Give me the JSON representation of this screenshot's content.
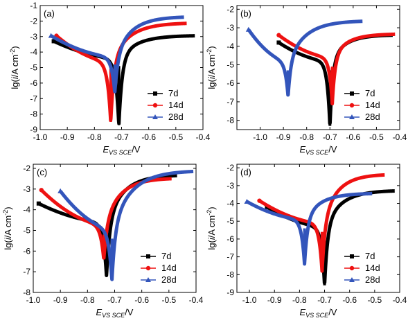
{
  "colors": {
    "7d": "#000000",
    "14d": "#ee1111",
    "28d": "#3355bb"
  },
  "chart_data": [
    {
      "panel": "(a)",
      "type": "line",
      "xlabel": "E_VS SCE/V",
      "ylabel": "lg(i/A cm^-2)",
      "xlim": [
        -1.0,
        -0.4
      ],
      "ylim": [
        -9,
        -1
      ],
      "xticks": [
        "-1.0",
        "-0.9",
        "-0.8",
        "-0.7",
        "-0.6",
        "-0.5",
        "-0.4"
      ],
      "yticks": [
        "-9",
        "-8",
        "-7",
        "-6",
        "-5",
        "-4",
        "-3",
        "-2",
        "-1"
      ],
      "legend": [
        "7d",
        "14d",
        "28d"
      ],
      "series": [
        {
          "name": "7d",
          "ecorr": -0.71,
          "icorr": -4.4,
          "start": [
            -0.95,
            -3.3
          ],
          "end": [
            -0.43,
            -2.95
          ],
          "dip": -8.7
        },
        {
          "name": "14d",
          "ecorr": -0.74,
          "icorr": -4.6,
          "start": [
            -0.94,
            -2.95
          ],
          "end": [
            -0.46,
            -2.15
          ],
          "dip": -8.5
        },
        {
          "name": "28d",
          "ecorr": -0.725,
          "icorr": -4.3,
          "start": [
            -0.96,
            -2.95
          ],
          "end": [
            -0.47,
            -1.75
          ],
          "dip": -6.6
        }
      ]
    },
    {
      "panel": "(b)",
      "type": "line",
      "xlabel": "E_VS SCE/V",
      "ylabel": "lg(i/A cm^-2)",
      "xlim": [
        -1.1,
        -0.4
      ],
      "ylim": [
        -8.5,
        -1.8
      ],
      "xticks": [
        "-1.0",
        "-0.9",
        "-0.8",
        "-0.7",
        "-0.6",
        "-0.5",
        "-0.4"
      ],
      "yticks": [
        "-8",
        "-7",
        "-6",
        "-5",
        "-4",
        "-3",
        "-2"
      ],
      "legend": [
        "7d",
        "14d",
        "28d"
      ],
      "series": [
        {
          "name": "7d",
          "ecorr": -0.7,
          "icorr": -4.8,
          "start": [
            -0.92,
            -3.8
          ],
          "end": [
            -0.43,
            -3.4
          ],
          "dip": -8.3
        },
        {
          "name": "14d",
          "ecorr": -0.69,
          "icorr": -4.6,
          "start": [
            -0.92,
            -3.4
          ],
          "end": [
            -0.42,
            -3.35
          ],
          "dip": -7.1
        },
        {
          "name": "28d",
          "ecorr": -0.88,
          "icorr": -4.8,
          "start": [
            -1.05,
            -3.1
          ],
          "end": [
            -0.56,
            -2.65
          ],
          "dip": -6.7
        }
      ]
    },
    {
      "panel": "(c)",
      "type": "line",
      "xlabel": "E_VS SCE/V",
      "ylabel": "lg(i/A cm^-2)",
      "xlim": [
        -1.0,
        -0.4
      ],
      "ylim": [
        -8,
        -1.8
      ],
      "xticks": [
        "-1.0",
        "-0.9",
        "-0.8",
        "-0.7",
        "-0.6",
        "-0.5",
        "-0.4"
      ],
      "yticks": [
        "-8",
        "-7",
        "-6",
        "-5",
        "-4",
        "-3",
        "-2"
      ],
      "legend": [
        "7d",
        "14d",
        "28d"
      ],
      "series": [
        {
          "name": "7d",
          "ecorr": -0.73,
          "icorr": -4.6,
          "start": [
            -0.98,
            -3.7
          ],
          "end": [
            -0.47,
            -2.35
          ],
          "dip": -7.2
        },
        {
          "name": "14d",
          "ecorr": -0.74,
          "icorr": -4.7,
          "start": [
            -0.97,
            -3.05
          ],
          "end": [
            -0.49,
            -2.5
          ],
          "dip": -6.4
        },
        {
          "name": "28d",
          "ecorr": -0.71,
          "icorr": -4.9,
          "start": [
            -0.9,
            -3.1
          ],
          "end": [
            -0.41,
            -2.15
          ],
          "dip": -7.4
        }
      ]
    },
    {
      "panel": "(d)",
      "type": "line",
      "xlabel": "E_VS SCE/V",
      "ylabel": "lg(i/A cm^-2)",
      "xlim": [
        -1.05,
        -0.4
      ],
      "ylim": [
        -9,
        -1.8
      ],
      "xticks": [
        "-1.0",
        "-0.9",
        "-0.8",
        "-0.7",
        "-0.6",
        "-0.5",
        "-0.4"
      ],
      "yticks": [
        "-9",
        "-8",
        "-7",
        "-6",
        "-5",
        "-4",
        "-3",
        "-2"
      ],
      "legend": [
        "7d",
        "14d",
        "28d"
      ],
      "series": [
        {
          "name": "7d",
          "ecorr": -0.7,
          "icorr": -5.3,
          "start": [
            -0.93,
            -4.2
          ],
          "end": [
            -0.42,
            -3.3
          ],
          "dip": -8.6
        },
        {
          "name": "14d",
          "ecorr": -0.71,
          "icorr": -5.1,
          "start": [
            -0.96,
            -3.85
          ],
          "end": [
            -0.46,
            -2.4
          ],
          "dip": -7.8
        },
        {
          "name": "28d",
          "ecorr": -0.78,
          "icorr": -4.9,
          "start": [
            -1.01,
            -3.9
          ],
          "end": [
            -0.51,
            -3.45
          ],
          "dip": -7.4
        }
      ]
    }
  ]
}
